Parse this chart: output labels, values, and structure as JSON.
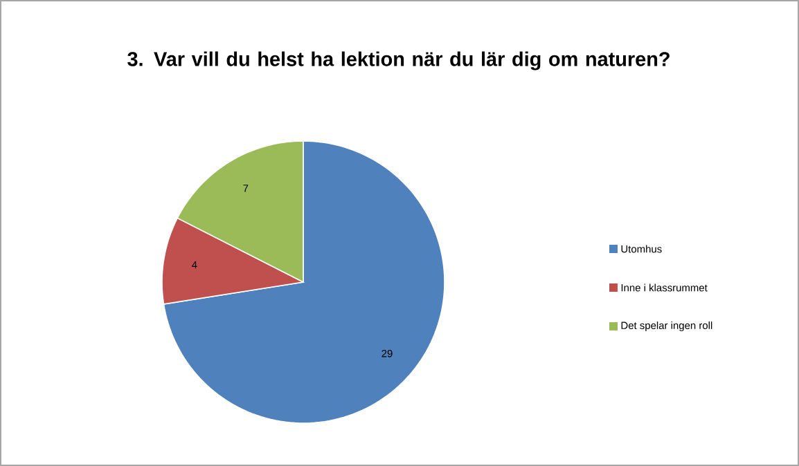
{
  "chart_data": {
    "type": "pie",
    "title": "3. Var vill du helst ha lektion när du lär dig om naturen?",
    "categories": [
      "Utomhus",
      "Inne i klassrummet",
      "Det spelar ingen roll"
    ],
    "values": [
      29,
      4,
      7
    ],
    "colors": [
      "#4f81bd",
      "#c0504d",
      "#9bbb59"
    ],
    "data_labels": true,
    "legend": "right"
  }
}
